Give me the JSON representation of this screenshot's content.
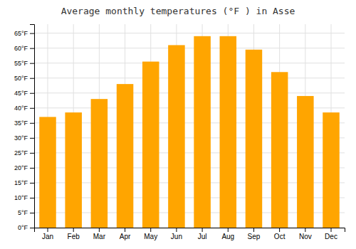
{
  "chart_data": {
    "type": "bar",
    "title": "Average monthly temperatures (°F ) in Asse",
    "categories": [
      "Jan",
      "Feb",
      "Mar",
      "Apr",
      "May",
      "Jun",
      "Jul",
      "Aug",
      "Sep",
      "Oct",
      "Nov",
      "Dec"
    ],
    "values": [
      37,
      38.5,
      43,
      48,
      55.5,
      61,
      64,
      64,
      59.5,
      52,
      44,
      38.5
    ],
    "color": "#FFA500",
    "ylim": [
      0,
      68
    ],
    "yticks": [
      {
        "value": 0,
        "label": "0°F"
      },
      {
        "value": 5,
        "label": "5°F"
      },
      {
        "value": 10,
        "label": "10°F"
      },
      {
        "value": 15,
        "label": "15°F"
      },
      {
        "value": 20,
        "label": "20°F"
      },
      {
        "value": 25,
        "label": "25°F"
      },
      {
        "value": 30,
        "label": "30°F"
      },
      {
        "value": 35,
        "label": "35°F"
      },
      {
        "value": 40,
        "label": "40°F"
      },
      {
        "value": 45,
        "label": "45°F"
      },
      {
        "value": 50,
        "label": "50°F"
      },
      {
        "value": 55,
        "label": "55°F"
      },
      {
        "value": 60,
        "label": "60°F"
      },
      {
        "value": 65,
        "label": "65°F"
      }
    ],
    "grid": true
  }
}
